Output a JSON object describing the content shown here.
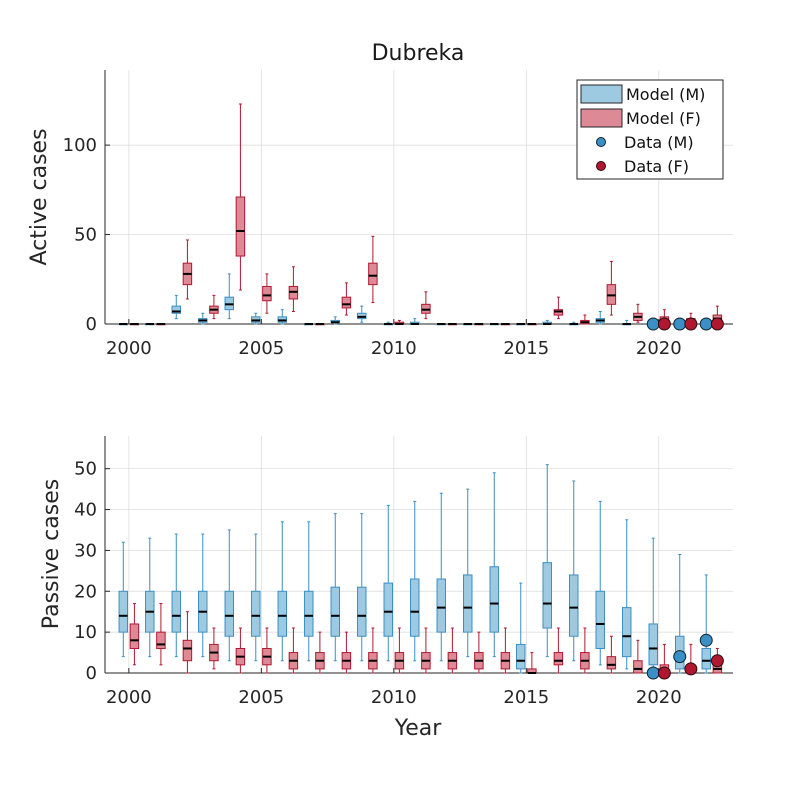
{
  "figure": {
    "title": "Dubreka",
    "xlabel": "Year"
  },
  "colors": {
    "model_m_face": "#9ecae1",
    "model_m_edge": "#3a8fc4",
    "model_f_face": "#de8a96",
    "model_f_edge": "#b0182f",
    "data_m": "#3a8fc4",
    "data_f": "#b0182f",
    "median": "#000000"
  },
  "chart_data": [
    {
      "type": "box",
      "panel": "top",
      "ylabel": "Active cases",
      "xlim": [
        1999.1,
        2022.8
      ],
      "ylim": [
        0,
        142
      ],
      "xticks": [
        2000,
        2005,
        2010,
        2015,
        2020
      ],
      "yticks": [
        0,
        50,
        100
      ],
      "grid": true,
      "legend": {
        "position": "top-right",
        "entries": [
          "Model (M)",
          "Model (F)",
          "Data (M)",
          "Data (F)"
        ]
      },
      "years": [
        2000,
        2001,
        2002,
        2003,
        2004,
        2005,
        2006,
        2007,
        2008,
        2009,
        2010,
        2011,
        2012,
        2013,
        2014,
        2015,
        2016,
        2017,
        2018,
        2019,
        2020,
        2021,
        2022
      ],
      "series": [
        {
          "name": "Model (M)",
          "boxes": [
            [
              0,
              0,
              0,
              0,
              0
            ],
            [
              0,
              0,
              0,
              0,
              0
            ],
            [
              3,
              6,
              7,
              10,
              16
            ],
            [
              0,
              1,
              2,
              3,
              6
            ],
            [
              3,
              8,
              11,
              15,
              28
            ],
            [
              0,
              1,
              2,
              4,
              6
            ],
            [
              0,
              1,
              2,
              4,
              8
            ],
            [
              0,
              0,
              0,
              0,
              0
            ],
            [
              0,
              1,
              1,
              2,
              4
            ],
            [
              1,
              3,
              4,
              6,
              10
            ],
            [
              0,
              0,
              0,
              0,
              1
            ],
            [
              0,
              0,
              0,
              1,
              3
            ],
            [
              0,
              0,
              0,
              0,
              0
            ],
            [
              0,
              0,
              0,
              0,
              0
            ],
            [
              0,
              0,
              0,
              0,
              0
            ],
            [
              0,
              0,
              0,
              0,
              0
            ],
            [
              0,
              0,
              0,
              1,
              2
            ],
            [
              0,
              0,
              0,
              0,
              1
            ],
            [
              0,
              1,
              2,
              3,
              7
            ],
            [
              0,
              0,
              0,
              0,
              2
            ],
            [
              0,
              0,
              0,
              0,
              1
            ],
            [
              0,
              0,
              0,
              0,
              1
            ],
            [
              0,
              0,
              0,
              0,
              2
            ]
          ]
        },
        {
          "name": "Model (F)",
          "boxes": [
            [
              0,
              0,
              0,
              0,
              0
            ],
            [
              0,
              0,
              0,
              0,
              0
            ],
            [
              14,
              22,
              28,
              34,
              47
            ],
            [
              3,
              6,
              8,
              10,
              16
            ],
            [
              19,
              38,
              52,
              71,
              123
            ],
            [
              6,
              13,
              16,
              21,
              28
            ],
            [
              7,
              14,
              18,
              21,
              32
            ],
            [
              0,
              0,
              0,
              0,
              0
            ],
            [
              5,
              9,
              11,
              15,
              23
            ],
            [
              12,
              22,
              27,
              34,
              49
            ],
            [
              0,
              0,
              0,
              1,
              2
            ],
            [
              3,
              6,
              8,
              11,
              18
            ],
            [
              0,
              0,
              0,
              0,
              0
            ],
            [
              0,
              0,
              0,
              0,
              0
            ],
            [
              0,
              0,
              0,
              0,
              0
            ],
            [
              0,
              0,
              0,
              0,
              0
            ],
            [
              3,
              5,
              7,
              8,
              15
            ],
            [
              0,
              0,
              1,
              2,
              5
            ],
            [
              5,
              11,
              16,
              22,
              35
            ],
            [
              1,
              2,
              4,
              6,
              11
            ],
            [
              0,
              1,
              2,
              4,
              8
            ],
            [
              0,
              0,
              1,
              3,
              6
            ],
            [
              1,
              2,
              3,
              5,
              10
            ]
          ]
        },
        {
          "name": "Data (M)",
          "years": [
            2020,
            2021,
            2022
          ],
          "values": [
            0,
            0,
            0
          ]
        },
        {
          "name": "Data (F)",
          "years": [
            2020,
            2021,
            2022
          ],
          "values": [
            0,
            0,
            0
          ]
        }
      ]
    },
    {
      "type": "box",
      "panel": "bottom",
      "ylabel": "Passive cases",
      "xlabel": "Year",
      "xlim": [
        1999.1,
        2022.8
      ],
      "ylim": [
        0,
        58
      ],
      "xticks": [
        2000,
        2005,
        2010,
        2015,
        2020
      ],
      "yticks": [
        0,
        10,
        20,
        30,
        40,
        50
      ],
      "grid": true,
      "years": [
        2000,
        2001,
        2002,
        2003,
        2004,
        2005,
        2006,
        2007,
        2008,
        2009,
        2010,
        2011,
        2012,
        2013,
        2014,
        2015,
        2016,
        2017,
        2018,
        2019,
        2020,
        2021,
        2022
      ],
      "series": [
        {
          "name": "Model (M)",
          "boxes": [
            [
              4,
              10,
              14,
              20,
              32
            ],
            [
              4,
              10,
              15,
              20,
              33
            ],
            [
              4,
              10,
              14,
              20,
              34
            ],
            [
              4,
              10,
              15,
              20,
              34
            ],
            [
              3,
              9,
              14,
              20,
              35
            ],
            [
              3,
              9,
              14,
              20,
              34
            ],
            [
              3,
              9,
              14,
              20,
              37
            ],
            [
              3,
              9,
              14,
              20,
              37
            ],
            [
              3,
              9,
              14,
              21,
              39
            ],
            [
              3,
              9,
              14,
              21,
              39
            ],
            [
              3,
              9,
              15,
              22,
              41
            ],
            [
              3,
              9,
              15,
              23,
              42
            ],
            [
              3,
              10,
              16,
              23,
              44
            ],
            [
              4,
              10,
              16,
              24,
              45
            ],
            [
              4,
              10,
              17,
              26,
              49
            ],
            [
              0,
              1,
              3,
              7,
              22
            ],
            [
              4,
              11,
              17,
              27,
              51
            ],
            [
              3,
              9,
              16,
              24,
              47
            ],
            [
              2,
              6,
              12,
              20,
              42
            ],
            [
              1,
              4,
              9,
              16,
              37.5
            ],
            [
              0,
              2,
              6,
              12,
              33
            ],
            [
              0,
              1,
              4,
              9,
              29
            ],
            [
              0,
              1,
              3,
              6,
              24
            ]
          ]
        },
        {
          "name": "Model (F)",
          "boxes": [
            [
              2,
              6,
              8,
              12,
              17
            ],
            [
              2,
              6,
              7,
              10,
              17
            ],
            [
              0,
              3,
              6,
              8,
              15
            ],
            [
              1,
              3,
              5,
              7,
              11
            ],
            [
              0,
              2,
              4,
              6,
              11
            ],
            [
              0,
              2,
              4,
              6,
              11
            ],
            [
              0,
              1,
              3,
              5,
              11
            ],
            [
              0,
              1,
              3,
              5,
              10
            ],
            [
              0,
              1,
              3,
              5,
              10
            ],
            [
              0,
              1,
              3,
              5,
              11
            ],
            [
              0,
              1,
              3,
              5,
              11
            ],
            [
              0,
              1,
              3,
              5,
              11
            ],
            [
              0,
              1,
              3,
              5,
              11
            ],
            [
              0,
              1,
              3,
              5,
              10
            ],
            [
              0,
              1,
              3,
              5,
              11
            ],
            [
              0,
              0,
              0,
              1,
              5
            ],
            [
              0,
              2,
              3,
              5,
              11
            ],
            [
              0,
              1,
              3,
              5,
              11
            ],
            [
              0,
              1,
              2,
              4,
              9
            ],
            [
              0,
              0,
              1,
              3,
              8
            ],
            [
              0,
              0,
              1,
              2,
              7
            ],
            [
              0,
              0,
              1,
              2,
              7
            ],
            [
              0,
              0,
              1,
              2,
              6
            ]
          ]
        },
        {
          "name": "Data (M)",
          "years": [
            2020,
            2021,
            2022
          ],
          "values": [
            0,
            4,
            8
          ]
        },
        {
          "name": "Data (F)",
          "years": [
            2020,
            2021,
            2022
          ],
          "values": [
            0,
            1,
            3
          ]
        }
      ]
    }
  ]
}
